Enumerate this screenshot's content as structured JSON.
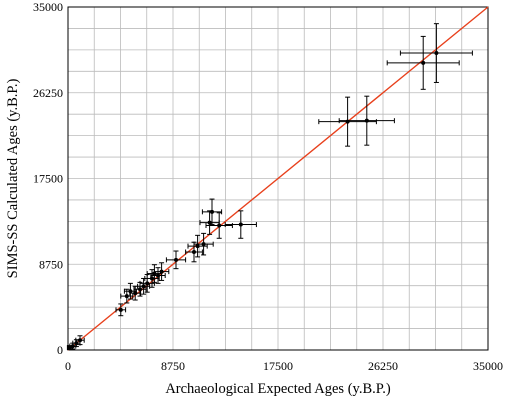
{
  "chart_data": {
    "type": "scatter",
    "xlabel": "Archaeological Expected Ages (y.B.P.)",
    "ylabel": "SIMS-SS Calculated Ages (y.B.P.)",
    "xlim": [
      0,
      35000
    ],
    "ylim": [
      0,
      35000
    ],
    "x_ticks": [
      "0",
      "8750",
      "17500",
      "26250",
      "35000"
    ],
    "y_ticks": [
      "0",
      "8750",
      "17500",
      "26250",
      "35000"
    ],
    "grid": true,
    "colors": {
      "points": "#000000",
      "fit_line": "#e8401c",
      "grid": "#bbbbbb"
    },
    "fit_line": {
      "x": [
        0,
        35000
      ],
      "y": [
        0,
        35000
      ]
    },
    "points": [
      {
        "x": 150,
        "y": 250,
        "xerr": 200,
        "yerr": 200
      },
      {
        "x": 400,
        "y": 400,
        "xerr": 250,
        "yerr": 300
      },
      {
        "x": 700,
        "y": 700,
        "xerr": 300,
        "yerr": 350
      },
      {
        "x": 1000,
        "y": 1000,
        "xerr": 350,
        "yerr": 450
      },
      {
        "x": 4400,
        "y": 4100,
        "xerr": 400,
        "yerr": 600
      },
      {
        "x": 4900,
        "y": 5500,
        "xerr": 500,
        "yerr": 700
      },
      {
        "x": 5200,
        "y": 6000,
        "xerr": 500,
        "yerr": 800
      },
      {
        "x": 5600,
        "y": 5800,
        "xerr": 450,
        "yerr": 700
      },
      {
        "x": 6000,
        "y": 6200,
        "xerr": 500,
        "yerr": 700
      },
      {
        "x": 6300,
        "y": 6500,
        "xerr": 500,
        "yerr": 800
      },
      {
        "x": 6600,
        "y": 6800,
        "xerr": 600,
        "yerr": 900
      },
      {
        "x": 7000,
        "y": 7300,
        "xerr": 600,
        "yerr": 900
      },
      {
        "x": 7200,
        "y": 7800,
        "xerr": 600,
        "yerr": 900
      },
      {
        "x": 7500,
        "y": 7600,
        "xerr": 600,
        "yerr": 800
      },
      {
        "x": 7800,
        "y": 8000,
        "xerr": 600,
        "yerr": 900
      },
      {
        "x": 9000,
        "y": 9200,
        "xerr": 800,
        "yerr": 900
      },
      {
        "x": 10500,
        "y": 10000,
        "xerr": 700,
        "yerr": 1000
      },
      {
        "x": 10800,
        "y": 10600,
        "xerr": 800,
        "yerr": 1100
      },
      {
        "x": 11300,
        "y": 10800,
        "xerr": 800,
        "yerr": 1100
      },
      {
        "x": 11800,
        "y": 13000,
        "xerr": 800,
        "yerr": 1200
      },
      {
        "x": 12000,
        "y": 14100,
        "xerr": 800,
        "yerr": 1300
      },
      {
        "x": 12600,
        "y": 12700,
        "xerr": 1100,
        "yerr": 1300
      },
      {
        "x": 14400,
        "y": 12800,
        "xerr": 1300,
        "yerr": 1400
      },
      {
        "x": 23300,
        "y": 23300,
        "xerr": 2400,
        "yerr": 2500
      },
      {
        "x": 24900,
        "y": 23400,
        "xerr": 2300,
        "yerr": 2500
      },
      {
        "x": 29600,
        "y": 29300,
        "xerr": 3000,
        "yerr": 2700
      },
      {
        "x": 30700,
        "y": 30300,
        "xerr": 3000,
        "yerr": 3000
      }
    ]
  }
}
